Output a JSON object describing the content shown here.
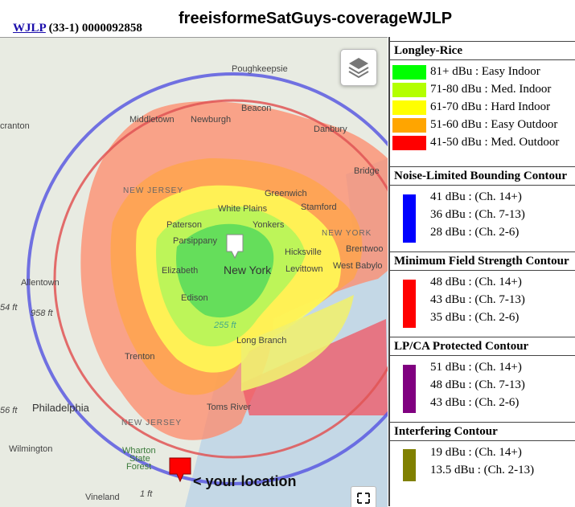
{
  "header": {
    "callsign": "WJLP",
    "station_info": "(33-1) 0000092858",
    "title": "freeisformeSatGuys-coverageWJLP"
  },
  "map": {
    "places": {
      "poughkeepsie": "Poughkeepsie",
      "scranton": "cranton",
      "beacon": "Beacon",
      "middletown": "Middletown",
      "newburgh": "Newburgh",
      "danbury": "Danbury",
      "bridge": "Bridge",
      "new_jersey_1": "NEW JERSEY",
      "greenwich": "Greenwich",
      "white_plains": "White Plains",
      "stamford": "Stamford",
      "yonkers": "Yonkers",
      "paterson": "Paterson",
      "new_york_state": "NEW YORK",
      "brentwood": "Brentwoo",
      "parsippany": "Parsippany",
      "hicksville": "Hicksville",
      "west_babylon": "West Babylo",
      "levittown": "Levittown",
      "new_york": "New York",
      "elizabeth": "Elizabeth",
      "allentown": "Allentown",
      "edison": "Edison",
      "elev_54": "54 ft",
      "elev_958": "958 ft",
      "elev_255": "255 ft",
      "long_branch": "Long Branch",
      "trenton": "Trenton",
      "philadelphia": "Philadelphia",
      "toms_river": "Toms River",
      "new_jersey_2": "NEW JERSEY",
      "wilmington": "Wilmington",
      "wharton": "Wharton",
      "state": "State",
      "forest": "Forest",
      "vineland": "Vineland",
      "elev_56": "56 ft",
      "elev_1": "1 ft"
    },
    "your_location_label": "< your location",
    "icons": {
      "layers": "layers-icon",
      "fullscreen": "fullscreen-icon",
      "station_marker": "station-marker-icon",
      "location_marker": "location-marker-icon"
    },
    "colors": {
      "easy_indoor": "#00ff00",
      "med_indoor": "#b3ff00",
      "hard_indoor": "#ffff00",
      "easy_outdoor": "#ffa500",
      "med_outdoor": "#ff0000",
      "noise_limited_ring": "#5b5be0",
      "min_field_ring": "#e05555",
      "location_marker": "#ff0000"
    }
  },
  "legend": {
    "longley_rice": {
      "heading": "Longley-Rice",
      "items": [
        {
          "label": "81+ dBu : Easy Indoor",
          "color": "#00ff00"
        },
        {
          "label": "71-80 dBu : Med. Indoor",
          "color": "#b3ff00"
        },
        {
          "label": "61-70 dBu : Hard Indoor",
          "color": "#ffff00"
        },
        {
          "label": "51-60 dBu : Easy Outdoor",
          "color": "#ffa500"
        },
        {
          "label": "41-50 dBu : Med. Outdoor",
          "color": "#ff0000"
        }
      ]
    },
    "noise_limited": {
      "heading": "Noise-Limited Bounding Contour",
      "color": "#0000ff",
      "items": [
        "41 dBu : (Ch. 14+)",
        "36 dBu : (Ch. 7-13)",
        "28 dBu : (Ch. 2-6)"
      ]
    },
    "min_field": {
      "heading": "Minimum Field Strength Contour",
      "color": "#ff0000",
      "items": [
        "48 dBu : (Ch. 14+)",
        "43 dBu : (Ch. 7-13)",
        "35 dBu : (Ch. 2-6)"
      ]
    },
    "lpca": {
      "heading": "LP/CA Protected Contour",
      "color": "#800080",
      "items": [
        "51 dBu : (Ch. 14+)",
        "48 dBu : (Ch. 7-13)",
        "43 dBu : (Ch. 2-6)"
      ]
    },
    "interfering": {
      "heading": "Interfering Contour",
      "color": "#808000",
      "items": [
        "19 dBu : (Ch. 14+)",
        "13.5 dBu : (Ch. 2-13)"
      ]
    }
  }
}
